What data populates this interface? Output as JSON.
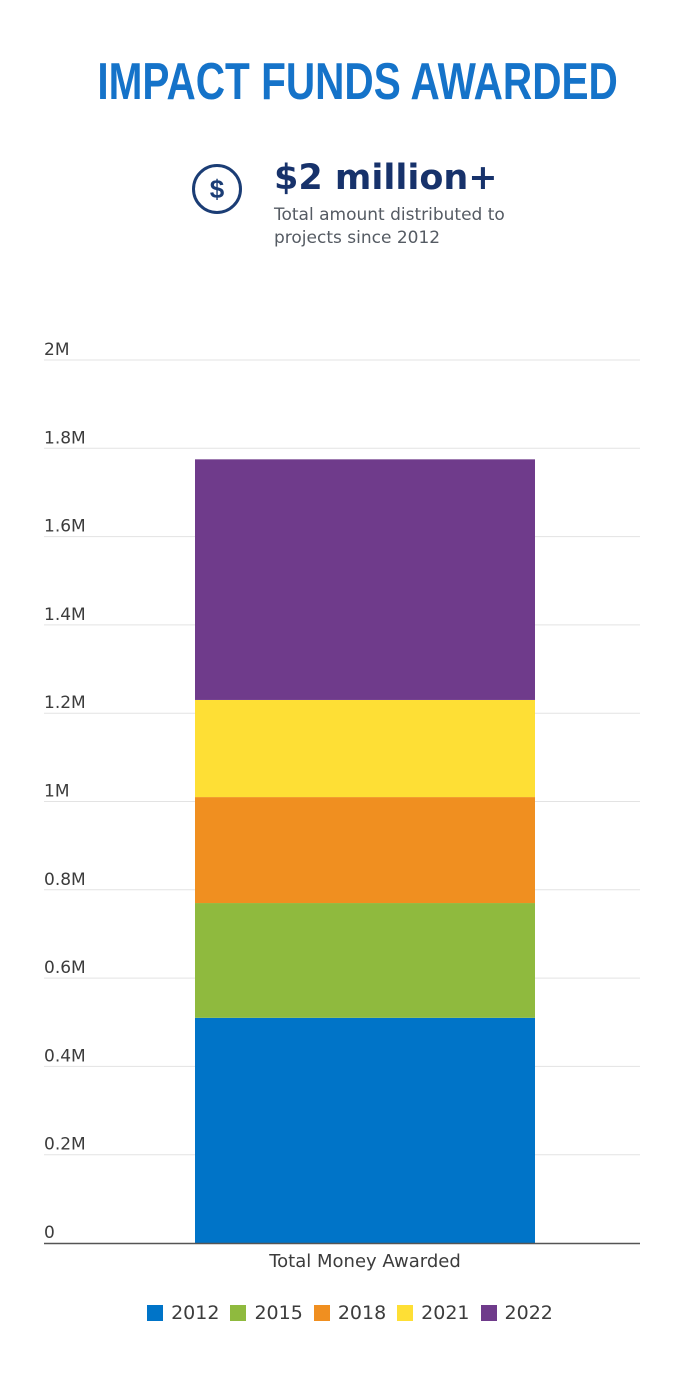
{
  "header": {
    "title": "IMPACT FUNDS AWARDED"
  },
  "stat": {
    "icon": "dollar-circle-icon",
    "icon_glyph": "$",
    "value": "$2 million+",
    "description": "Total amount distributed to projects since 2012"
  },
  "chart_data": {
    "type": "bar",
    "stacked": true,
    "categories": [
      "Total Money Awarded"
    ],
    "series": [
      {
        "name": "2012",
        "values": [
          510000
        ],
        "color": "#0074c8"
      },
      {
        "name": "2015",
        "values": [
          260000
        ],
        "color": "#8fba3e"
      },
      {
        "name": "2018",
        "values": [
          240000
        ],
        "color": "#f08f20"
      },
      {
        "name": "2021",
        "values": [
          220000
        ],
        "color": "#fedf35"
      },
      {
        "name": "2022",
        "values": [
          545000
        ],
        "color": "#6f3b8b"
      }
    ],
    "xlabel": "Total Money Awarded",
    "ylabel": "",
    "ylim": [
      0,
      2000000
    ],
    "y_ticks": [
      0,
      200000,
      400000,
      600000,
      800000,
      1000000,
      1200000,
      1400000,
      1600000,
      1800000,
      2000000
    ],
    "y_tick_labels": [
      "0",
      "0.2M",
      "0.4M",
      "0.6M",
      "0.8M",
      "1M",
      "1.2M",
      "1.4M",
      "1.6M",
      "1.8M",
      "2M"
    ],
    "grid": true,
    "legend_position": "bottom"
  }
}
